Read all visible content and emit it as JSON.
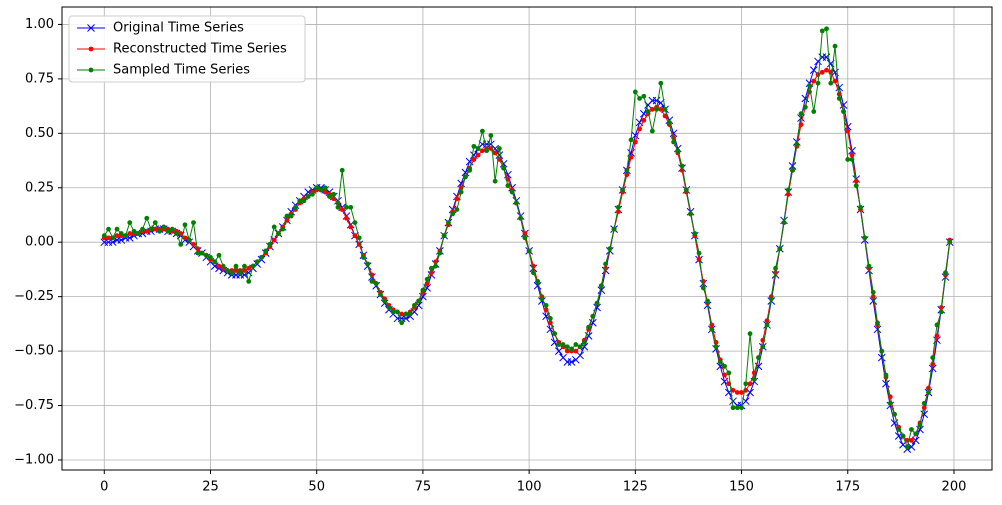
{
  "chart_data": {
    "type": "line",
    "x": [
      0,
      1,
      2,
      3,
      4,
      5,
      6,
      7,
      8,
      9,
      10,
      11,
      12,
      13,
      14,
      15,
      16,
      17,
      18,
      19,
      20,
      21,
      22,
      23,
      24,
      25,
      26,
      27,
      28,
      29,
      30,
      31,
      32,
      33,
      34,
      35,
      36,
      37,
      38,
      39,
      40,
      41,
      42,
      43,
      44,
      45,
      46,
      47,
      48,
      49,
      50,
      51,
      52,
      53,
      54,
      55,
      56,
      57,
      58,
      59,
      60,
      61,
      62,
      63,
      64,
      65,
      66,
      67,
      68,
      69,
      70,
      71,
      72,
      73,
      74,
      75,
      76,
      77,
      78,
      79,
      80,
      81,
      82,
      83,
      84,
      85,
      86,
      87,
      88,
      89,
      90,
      91,
      92,
      93,
      94,
      95,
      96,
      97,
      98,
      99,
      100,
      101,
      102,
      103,
      104,
      105,
      106,
      107,
      108,
      109,
      110,
      111,
      112,
      113,
      114,
      115,
      116,
      117,
      118,
      119,
      120,
      121,
      122,
      123,
      124,
      125,
      126,
      127,
      128,
      129,
      130,
      131,
      132,
      133,
      134,
      135,
      136,
      137,
      138,
      139,
      140,
      141,
      142,
      143,
      144,
      145,
      146,
      147,
      148,
      149,
      150,
      151,
      152,
      153,
      154,
      155,
      156,
      157,
      158,
      159,
      160,
      161,
      162,
      163,
      164,
      165,
      166,
      167,
      168,
      169,
      170,
      171,
      172,
      173,
      174,
      175,
      176,
      177,
      178,
      179,
      180,
      181,
      182,
      183,
      184,
      185,
      186,
      187,
      188,
      189,
      190,
      191,
      192,
      193,
      194,
      195,
      196,
      197,
      198,
      199
    ],
    "series": [
      {
        "name": "Original Time Series",
        "color": "#0000ff",
        "marker": "x",
        "values": [
          0,
          0,
          0,
          0.01,
          0.01,
          0.02,
          0.02,
          0.03,
          0.04,
          0.04,
          0.05,
          0.05,
          0.06,
          0.06,
          0.06,
          0.05,
          0.05,
          0.04,
          0.03,
          0.01,
          0,
          -0.02,
          -0.04,
          -0.05,
          -0.07,
          -0.09,
          -0.11,
          -0.12,
          -0.13,
          -0.14,
          -0.15,
          -0.15,
          -0.15,
          -0.15,
          -0.14,
          -0.12,
          -0.1,
          -0.08,
          -0.05,
          -0.02,
          0.01,
          0.04,
          0.07,
          0.1,
          0.14,
          0.17,
          0.19,
          0.21,
          0.23,
          0.24,
          0.25,
          0.25,
          0.24,
          0.23,
          0.21,
          0.19,
          0.16,
          0.12,
          0.08,
          0.03,
          -0.01,
          -0.06,
          -0.11,
          -0.16,
          -0.2,
          -0.24,
          -0.28,
          -0.31,
          -0.33,
          -0.35,
          -0.35,
          -0.35,
          -0.34,
          -0.32,
          -0.29,
          -0.25,
          -0.21,
          -0.15,
          -0.1,
          -0.04,
          0.03,
          0.09,
          0.15,
          0.21,
          0.27,
          0.32,
          0.37,
          0.4,
          0.43,
          0.45,
          0.45,
          0.45,
          0.43,
          0.4,
          0.36,
          0.31,
          0.25,
          0.19,
          0.12,
          0.04,
          -0.04,
          -0.12,
          -0.2,
          -0.27,
          -0.34,
          -0.4,
          -0.46,
          -0.5,
          -0.53,
          -0.55,
          -0.55,
          -0.54,
          -0.52,
          -0.48,
          -0.43,
          -0.37,
          -0.3,
          -0.22,
          -0.13,
          -0.04,
          0.06,
          0.15,
          0.24,
          0.33,
          0.41,
          0.49,
          0.55,
          0.59,
          0.63,
          0.65,
          0.65,
          0.64,
          0.61,
          0.56,
          0.5,
          0.43,
          0.34,
          0.24,
          0.14,
          0.03,
          -0.08,
          -0.19,
          -0.29,
          -0.4,
          -0.49,
          -0.57,
          -0.64,
          -0.69,
          -0.73,
          -0.75,
          -0.75,
          -0.73,
          -0.69,
          -0.64,
          -0.57,
          -0.48,
          -0.38,
          -0.27,
          -0.15,
          -0.03,
          0.1,
          0.23,
          0.35,
          0.46,
          0.57,
          0.66,
          0.73,
          0.79,
          0.83,
          0.85,
          0.85,
          0.82,
          0.78,
          0.71,
          0.63,
          0.53,
          0.42,
          0.29,
          0.15,
          0.01,
          -0.13,
          -0.27,
          -0.4,
          -0.53,
          -0.65,
          -0.75,
          -0.83,
          -0.89,
          -0.93,
          -0.95,
          -0.94,
          -0.91,
          -0.86,
          -0.79,
          -0.69,
          -0.58,
          -0.45,
          -0.31,
          -0.16,
          0
        ]
      },
      {
        "name": "Reconstructed Time Series",
        "color": "#ff0000",
        "marker": "o",
        "values": [
          0.02,
          0.02,
          0.02,
          0.03,
          0.03,
          0.03,
          0.04,
          0.04,
          0.04,
          0.05,
          0.05,
          0.06,
          0.06,
          0.06,
          0.06,
          0.06,
          0.05,
          0.05,
          0.04,
          0.02,
          0.01,
          -0.01,
          -0.03,
          -0.05,
          -0.06,
          -0.08,
          -0.09,
          -0.11,
          -0.12,
          -0.13,
          -0.13,
          -0.13,
          -0.13,
          -0.13,
          -0.12,
          -0.11,
          -0.09,
          -0.07,
          -0.05,
          -0.02,
          0.01,
          0.04,
          0.07,
          0.1,
          0.13,
          0.15,
          0.18,
          0.2,
          0.21,
          0.23,
          0.24,
          0.24,
          0.23,
          0.22,
          0.2,
          0.18,
          0.15,
          0.11,
          0.07,
          0.03,
          -0.01,
          -0.06,
          -0.1,
          -0.15,
          -0.19,
          -0.23,
          -0.26,
          -0.29,
          -0.31,
          -0.32,
          -0.33,
          -0.33,
          -0.32,
          -0.3,
          -0.27,
          -0.23,
          -0.19,
          -0.14,
          -0.09,
          -0.04,
          0.03,
          0.08,
          0.14,
          0.2,
          0.25,
          0.3,
          0.34,
          0.38,
          0.4,
          0.42,
          0.43,
          0.43,
          0.41,
          0.38,
          0.34,
          0.29,
          0.24,
          0.18,
          0.11,
          0.04,
          -0.04,
          -0.11,
          -0.18,
          -0.25,
          -0.31,
          -0.37,
          -0.42,
          -0.46,
          -0.48,
          -0.5,
          -0.5,
          -0.5,
          -0.48,
          -0.45,
          -0.4,
          -0.34,
          -0.28,
          -0.2,
          -0.12,
          -0.03,
          0.06,
          0.14,
          0.23,
          0.31,
          0.39,
          0.46,
          0.52,
          0.56,
          0.59,
          0.61,
          0.62,
          0.61,
          0.58,
          0.54,
          0.48,
          0.41,
          0.33,
          0.23,
          0.13,
          0.03,
          -0.08,
          -0.18,
          -0.28,
          -0.38,
          -0.46,
          -0.54,
          -0.61,
          -0.65,
          -0.68,
          -0.69,
          -0.69,
          -0.68,
          -0.65,
          -0.6,
          -0.53,
          -0.45,
          -0.36,
          -0.25,
          -0.14,
          -0.03,
          0.09,
          0.22,
          0.33,
          0.44,
          0.54,
          0.62,
          0.69,
          0.74,
          0.77,
          0.78,
          0.79,
          0.78,
          0.74,
          0.68,
          0.6,
          0.51,
          0.4,
          0.28,
          0.15,
          0.02,
          -0.12,
          -0.25,
          -0.38,
          -0.5,
          -0.62,
          -0.71,
          -0.79,
          -0.85,
          -0.89,
          -0.91,
          -0.91,
          -0.88,
          -0.83,
          -0.76,
          -0.67,
          -0.56,
          -0.43,
          -0.3,
          -0.15,
          0.01
        ]
      },
      {
        "name": "Sampled Time Series",
        "color": "#008000",
        "marker": "o",
        "values": [
          0.03,
          0.06,
          0.02,
          0.06,
          0.04,
          0.03,
          0.09,
          0.05,
          0.04,
          0.06,
          0.11,
          0.06,
          0.09,
          0.05,
          0.07,
          0.05,
          0.06,
          0.04,
          -0.01,
          0.08,
          0.01,
          0.09,
          -0.05,
          -0.05,
          -0.06,
          -0.07,
          -0.09,
          -0.06,
          -0.11,
          -0.13,
          -0.14,
          -0.11,
          -0.14,
          -0.11,
          -0.18,
          -0.11,
          -0.09,
          -0.07,
          -0.04,
          -0.01,
          0.07,
          0.04,
          0.06,
          0.12,
          0.12,
          0.16,
          0.19,
          0.19,
          0.21,
          0.22,
          0.25,
          0.24,
          0.25,
          0.21,
          0.22,
          0.16,
          0.33,
          0.16,
          0.16,
          0.09,
          0.02,
          -0.07,
          -0.1,
          -0.18,
          -0.19,
          -0.24,
          -0.27,
          -0.3,
          -0.32,
          -0.32,
          -0.37,
          -0.33,
          -0.33,
          -0.29,
          -0.27,
          -0.22,
          -0.17,
          -0.12,
          -0.11,
          -0.05,
          0.03,
          0.09,
          0.13,
          0.15,
          0.23,
          0.3,
          0.33,
          0.44,
          0.43,
          0.51,
          0.42,
          0.49,
          0.28,
          0.43,
          0.34,
          0.26,
          0.23,
          0.18,
          0.11,
          0.02,
          -0.04,
          -0.14,
          -0.18,
          -0.26,
          -0.29,
          -0.35,
          -0.42,
          -0.47,
          -0.47,
          -0.48,
          -0.49,
          -0.47,
          -0.48,
          -0.46,
          -0.39,
          -0.34,
          -0.28,
          -0.2,
          -0.1,
          -0.03,
          0.06,
          0.16,
          0.24,
          0.33,
          0.47,
          0.69,
          0.66,
          0.67,
          0.6,
          0.51,
          0.61,
          0.73,
          0.61,
          0.55,
          0.46,
          0.42,
          0.35,
          0.24,
          0.13,
          0.04,
          -0.05,
          -0.21,
          -0.27,
          -0.4,
          -0.48,
          -0.55,
          -0.57,
          -0.6,
          -0.76,
          -0.76,
          -0.76,
          -0.65,
          -0.42,
          -0.63,
          -0.53,
          -0.48,
          -0.38,
          -0.26,
          -0.12,
          -0.03,
          0.09,
          0.24,
          0.33,
          0.45,
          0.59,
          0.62,
          0.72,
          0.6,
          0.73,
          0.97,
          0.98,
          0.73,
          0.9,
          0.66,
          0.6,
          0.38,
          0.38,
          0.26,
          0.16,
          0.02,
          -0.11,
          -0.23,
          -0.37,
          -0.5,
          -0.61,
          -0.74,
          -0.79,
          -0.86,
          -0.89,
          -0.94,
          -0.86,
          -0.88,
          -0.84,
          -0.74,
          -0.69,
          -0.53,
          -0.38,
          -0.32,
          -0.14,
          0
        ]
      }
    ],
    "xlim": [
      -9.95,
      208.95
    ],
    "xticks": [
      0,
      25,
      50,
      75,
      100,
      125,
      150,
      175,
      200
    ],
    "ylim": [
      -1.046,
      1.08
    ],
    "yticks": [
      {
        "value": -1,
        "label": "−1.00"
      },
      {
        "value": -0.75,
        "label": "−0.75"
      },
      {
        "value": -0.5,
        "label": "−0.50"
      },
      {
        "value": -0.25,
        "label": "−0.25"
      },
      {
        "value": 0,
        "label": "0.00"
      },
      {
        "value": 0.25,
        "label": "0.25"
      },
      {
        "value": 0.5,
        "label": "0.50"
      },
      {
        "value": 0.75,
        "label": "0.75"
      },
      {
        "value": 1,
        "label": "1.00"
      }
    ],
    "grid": true,
    "legend": "upper left"
  }
}
